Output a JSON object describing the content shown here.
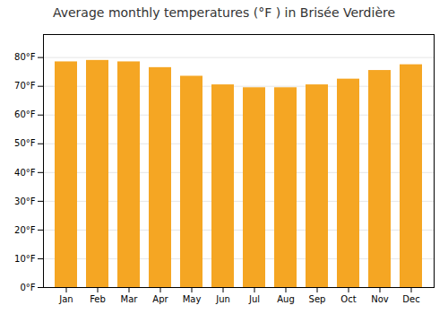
{
  "chart_data": {
    "type": "bar",
    "title": "Average monthly temperatures (°F ) in Brisée Verdière",
    "categories": [
      "Jan",
      "Feb",
      "Mar",
      "Apr",
      "May",
      "Jun",
      "Jul",
      "Aug",
      "Sep",
      "Oct",
      "Nov",
      "Dec"
    ],
    "values": [
      78.5,
      79.0,
      78.5,
      76.5,
      73.5,
      70.5,
      69.5,
      69.5,
      70.5,
      72.5,
      75.5,
      77.5
    ],
    "color": "#F5A623",
    "ylim": [
      0,
      88
    ],
    "yticks": [
      {
        "value": 0,
        "label": "0°F"
      },
      {
        "value": 10,
        "label": "10°F"
      },
      {
        "value": 20,
        "label": "20°F"
      },
      {
        "value": 30,
        "label": "30°F"
      },
      {
        "value": 40,
        "label": "40°F"
      },
      {
        "value": 50,
        "label": "50°F"
      },
      {
        "value": 60,
        "label": "60°F"
      },
      {
        "value": 70,
        "label": "70°F"
      },
      {
        "value": 80,
        "label": "80°F"
      }
    ],
    "grid": true
  }
}
